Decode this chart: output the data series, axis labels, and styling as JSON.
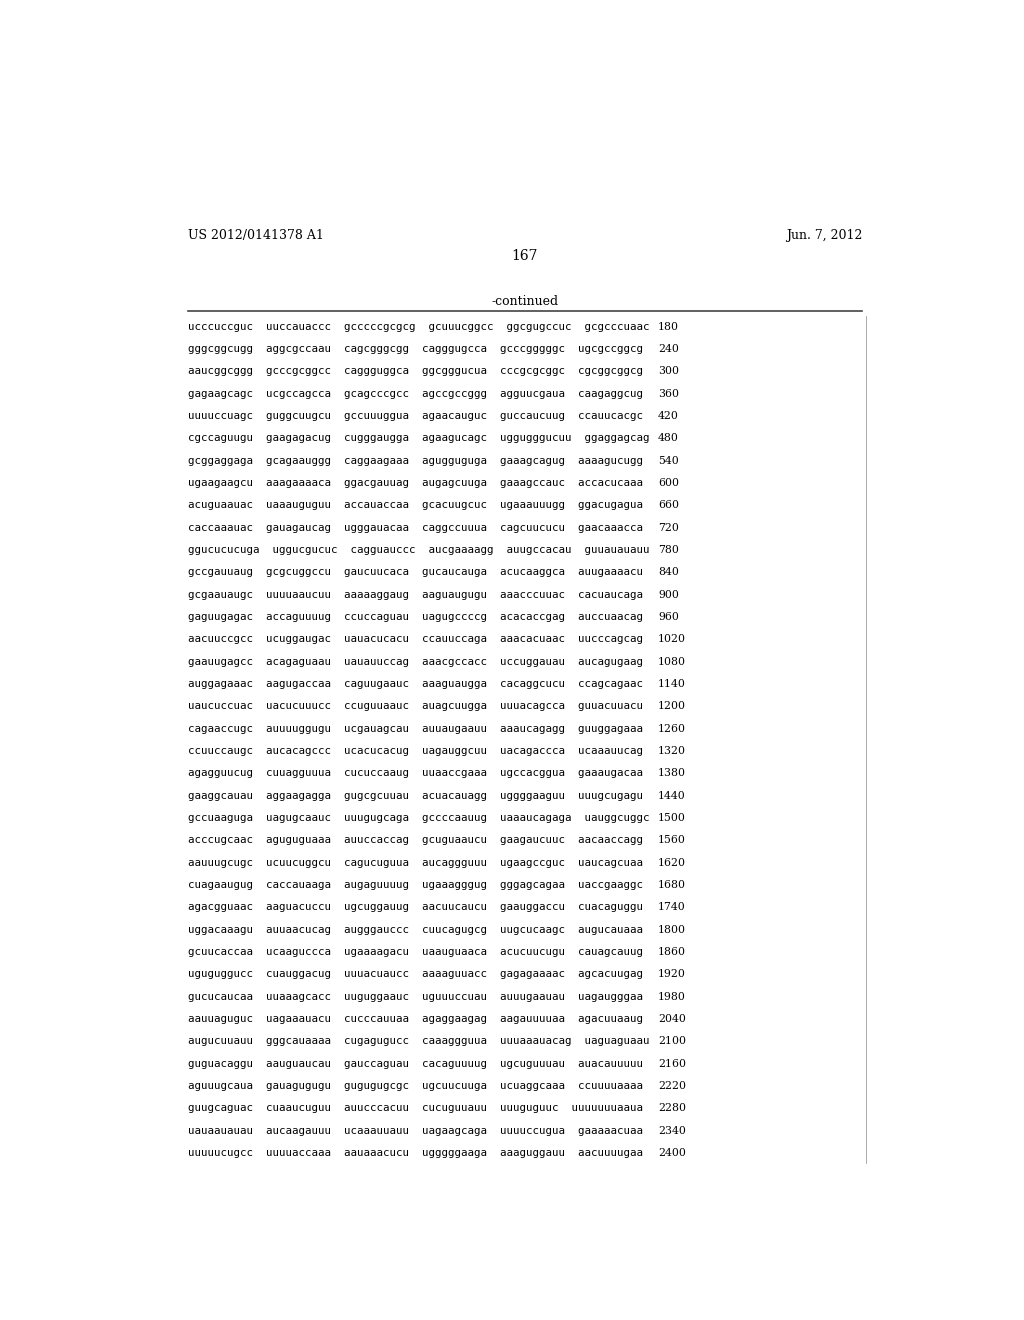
{
  "header_left": "US 2012/0141378 A1",
  "header_right": "Jun. 7, 2012",
  "page_number": "167",
  "continued_label": "-continued",
  "bg_color": "#ffffff",
  "text_color": "#000000",
  "rows": [
    [
      "ucccuccguc  uuccauaccc  gcccccgcgcg  gcuuucggcc  ggcgugccuc  gcgcccuaac",
      "180"
    ],
    [
      "gggcggcugg  aggcgccaau  cagcgggcgg  cagggugcca  gcccgggggc  ugcgccggcg",
      "240"
    ],
    [
      "aaucggcggg  gcccgcggcc  caggguggca  ggcgggucua  cccgcgcggc  cgcggcggcg",
      "300"
    ],
    [
      "gagaagcagc  ucgccagcca  gcagcccgcc  agccgccggg  agguucgaua  caagaggcug",
      "360"
    ],
    [
      "uuuuccuagc  guggcuugcu  gccuuuggua  agaacauguc  guccaucuug  ccauucacgc",
      "420"
    ],
    [
      "cgccaguugu  gaagagacug  cugggaugga  agaagucagc  uggugggucuu  ggaggagcag",
      "480"
    ],
    [
      "gcggaggaga  gcagaauggg  caggaagaaa  agugguguga  gaaagcagug  aaaagucugg",
      "540"
    ],
    [
      "ugaagaagcu  aaagaaaaca  ggacgauuag  augagcuuga  gaaagccauc  accacucaaa",
      "600"
    ],
    [
      "acuguaauac  uaaauguguu  accauaccaa  gcacuugcuc  ugaaauuugg  ggacugagua",
      "660"
    ],
    [
      "caccaaauac  gauagaucag  ugggauacaa  caggccuuua  cagcuucucu  gaacaaacca",
      "720"
    ],
    [
      "ggucucucuga  uggucgucuc  cagguauccc  aucgaaaagg  auugccacau  guuauauauu",
      "780"
    ],
    [
      "gccgauuaug  gcgcuggccu  gaucuucaca  gucaucauga  acucaaggca  auugaaaacu",
      "840"
    ],
    [
      "gcgaauaugc  uuuuaaucuu  aaaaaggaug  aaguaugugu  aaacccuuac  cacuaucaga",
      "900"
    ],
    [
      "gaguugagac  accaguuuug  ccuccaguau  uagugccccg  acacaccgag  auccuaacag",
      "960"
    ],
    [
      "aacuuccgcc  ucuggaugac  uauacucacu  ccauuccaga  aaacacuaac  uucccagcag",
      "1020"
    ],
    [
      "gaauugagcc  acagaguaau  uauauuccag  aaacgccacc  uccuggauau  aucagugaag",
      "1080"
    ],
    [
      "auggagaaac  aagugaccaa  caguugaauc  aaaguaugga  cacaggcucu  ccagcagaac",
      "1140"
    ],
    [
      "uaucuccuac  uacucuuucc  ccuguuaauc  auagcuugga  uuuacagcca  guuacuuacu",
      "1200"
    ],
    [
      "cagaaccugc  auuuuggugu  ucgauagcau  auuaugaauu  aaaucagagg  guuggagaaa",
      "1260"
    ],
    [
      "ccuuccaugc  aucacagccc  ucacucacug  uagauggcuu  uacagaccca  ucaaauucag",
      "1320"
    ],
    [
      "agagguucug  cuuagguuua  cucuccaaug  uuaaccgaaa  ugccacggua  gaaaugacaa",
      "1380"
    ],
    [
      "gaaggcauau  aggaagagga  gugcgcuuau  acuacauagg  uggggaaguu  uuugcugagu",
      "1440"
    ],
    [
      "gccuaaguga  uagugcaauc  uuugugcaga  gccccaauug  uaaaucagaga  uauggcuggc",
      "1500"
    ],
    [
      "acccugcaac  aguguguaaa  auuccaccag  gcuguaaucu  gaagaucuuc  aacaaccagg",
      "1560"
    ],
    [
      "aauuugcugc  ucuucuggcu  cagucuguua  aucaggguuu  ugaagccguc  uaucagcuaa",
      "1620"
    ],
    [
      "cuagaaugug  caccauaaga  augaguuuug  ugaaagggug  gggagcagaa  uaccgaaggc",
      "1680"
    ],
    [
      "agacgguaac  aaguacuccu  ugcuggauug  aacuucaucu  gaauggaccu  cuacaguggu",
      "1740"
    ],
    [
      "uggacaaagu  auuaacucag  augggauccc  cuucagugcg  uugcucaagc  augucauaaa",
      "1800"
    ],
    [
      "gcuucaccaa  ucaaguccca  ugaaaagacu  uaauguaaca  acucuucugu  cauagcauug",
      "1860"
    ],
    [
      "uguguggucc  cuauggacug  uuuacuaucc  aaaaguuacc  gagagaaaac  agcacuugag",
      "1920"
    ],
    [
      "gucucaucaa  uuaaagcacc  uuguggaauc  uguuuccuau  auuugaauau  uagaugggaa",
      "1980"
    ],
    [
      "aauuaguguc  uagaaauacu  cucccauuaa  agaggaagag  aagauuuuaa  agacuuaaug",
      "2040"
    ],
    [
      "augucuuauu  gggcauaaaa  cugagugucc  caaaggguua  uuuaaauacag  uaguaguaau",
      "2100"
    ],
    [
      "guguacaggu  aauguaucau  gauccaguau  cacaguuuug  ugcuguuuau  auacauuuuu",
      "2160"
    ],
    [
      "aguuugcaua  gauagugugu  gugugugcgc  ugcuucuuga  ucuaggcaaa  ccuuuuaaaa",
      "2220"
    ],
    [
      "guugcaguac  cuaaucuguu  auucccacuu  cucuguuauu  uuuguguuc  uuuuuuuaaua",
      "2280"
    ],
    [
      "uauaauauau  aucaagauuu  ucaaauuauu  uagaagcaga  uuuuccugua  gaaaaacuaa",
      "2340"
    ],
    [
      "uuuuucugcc  uuuuaccaaa  aauaaacucu  ugggggaaga  aaaguggauu  aacuuuugaa",
      "2400"
    ]
  ]
}
